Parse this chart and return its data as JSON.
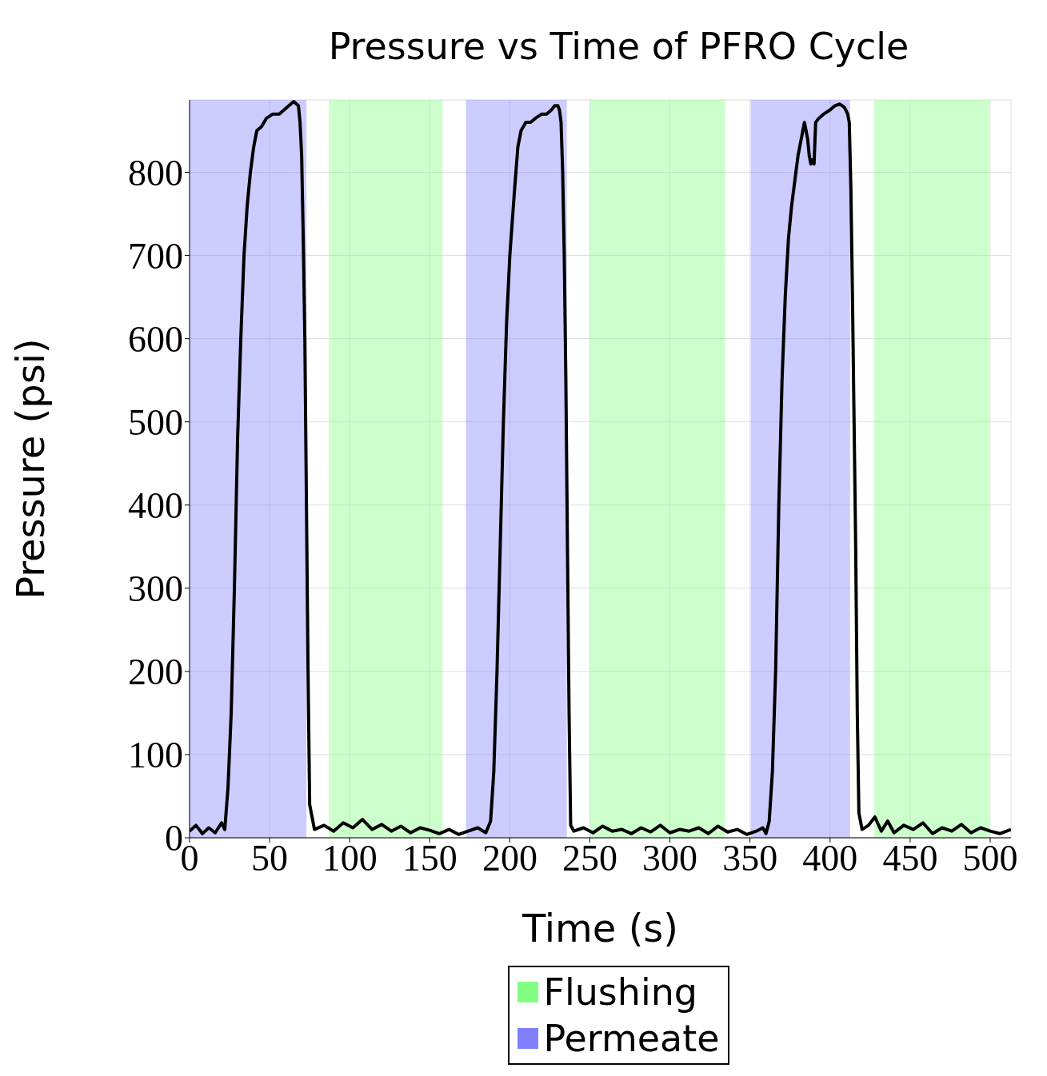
{
  "chart_data": {
    "type": "line",
    "title": "Pressure vs Time of PFRO Cycle",
    "xlabel": "Time (s)",
    "ylabel": "Pressure (psi)",
    "x": [
      0,
      4,
      8,
      12,
      16,
      20,
      22,
      24,
      26,
      28,
      30,
      32,
      34,
      36,
      38,
      40,
      42,
      45,
      48,
      52,
      56,
      59,
      62,
      65,
      68,
      69,
      70,
      71,
      72,
      73,
      74,
      75,
      78,
      84,
      90,
      96,
      102,
      108,
      114,
      120,
      126,
      132,
      138,
      144,
      150,
      156,
      162,
      168,
      174,
      180,
      185,
      188,
      190,
      192,
      194,
      196,
      198,
      200,
      203,
      205,
      207,
      210,
      213,
      216,
      220,
      223,
      226,
      228,
      230,
      231,
      232,
      233,
      234,
      235,
      236,
      237,
      238,
      240,
      246,
      252,
      258,
      264,
      270,
      276,
      282,
      288,
      294,
      300,
      306,
      312,
      318,
      324,
      330,
      336,
      342,
      348,
      354,
      358,
      360,
      362,
      364,
      366,
      368,
      370,
      372,
      374,
      376,
      378,
      380,
      382,
      384,
      386,
      387,
      388,
      389,
      390,
      391,
      393,
      396,
      400,
      403,
      406,
      409,
      411,
      412,
      413,
      414,
      415,
      416,
      417,
      418,
      420,
      424,
      428,
      432,
      436,
      440,
      446,
      452,
      458,
      464,
      470,
      476,
      482,
      488,
      494,
      500,
      506,
      513
    ],
    "series": [
      {
        "color": "#000000",
        "values": [
          8,
          15,
          5,
          12,
          6,
          18,
          10,
          60,
          150,
          300,
          480,
          600,
          700,
          760,
          800,
          830,
          850,
          855,
          865,
          870,
          870,
          875,
          880,
          885,
          880,
          860,
          820,
          720,
          600,
          400,
          200,
          40,
          10,
          15,
          8,
          18,
          12,
          22,
          10,
          16,
          8,
          14,
          6,
          12,
          9,
          5,
          10,
          4,
          8,
          12,
          6,
          20,
          80,
          200,
          350,
          500,
          620,
          700,
          780,
          830,
          850,
          860,
          860,
          865,
          870,
          870,
          875,
          880,
          880,
          875,
          860,
          800,
          700,
          550,
          350,
          150,
          15,
          8,
          12,
          6,
          14,
          8,
          10,
          5,
          12,
          7,
          15,
          6,
          10,
          8,
          12,
          5,
          14,
          7,
          10,
          4,
          8,
          12,
          5,
          20,
          80,
          200,
          400,
          550,
          650,
          720,
          760,
          790,
          820,
          840,
          860,
          840,
          820,
          810,
          815,
          810,
          860,
          865,
          870,
          875,
          880,
          882,
          878,
          870,
          860,
          780,
          650,
          500,
          350,
          150,
          30,
          10,
          15,
          25,
          8,
          20,
          6,
          15,
          10,
          18,
          5,
          12,
          8,
          16,
          6,
          12,
          8,
          5,
          10
        ]
      }
    ],
    "xlim": [
      0,
      513
    ],
    "ylim": [
      0,
      887
    ],
    "xticks": [
      0,
      50,
      100,
      150,
      200,
      250,
      300,
      350,
      400,
      450,
      500
    ],
    "yticks": [
      0,
      100,
      200,
      300,
      400,
      500,
      600,
      700,
      800
    ],
    "grid": true,
    "legend": "bottom",
    "marker": "none",
    "line_style": "solid",
    "bands": [
      {
        "axis": "x",
        "from": 0,
        "to": 73,
        "label": "Permeate",
        "color": "#8080ff"
      },
      {
        "axis": "x",
        "from": 87,
        "to": 158,
        "label": "Flushing",
        "color": "#80ff80"
      },
      {
        "axis": "x",
        "from": 172.6,
        "to": 235.6,
        "color": "#8080ff"
      },
      {
        "axis": "x",
        "from": 250,
        "to": 334.6,
        "color": "#80ff80"
      },
      {
        "axis": "x",
        "from": 350.5,
        "to": 412.5,
        "color": "#8080ff"
      },
      {
        "axis": "x",
        "from": 427.4,
        "to": 499.5,
        "color": "#80ff80"
      }
    ]
  }
}
